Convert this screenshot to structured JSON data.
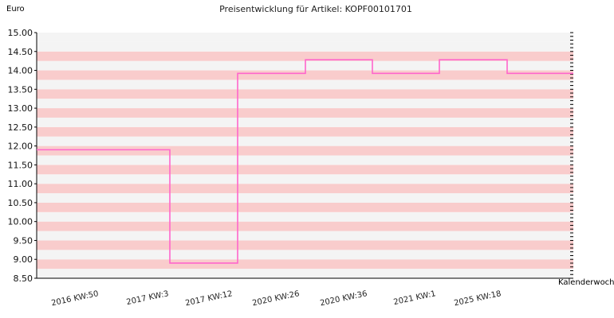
{
  "chart_data": {
    "type": "line",
    "title": "Preisentwicklung für Artikel: KOPF00101701",
    "ylabel": "Euro",
    "xlabel": "Kalenderwoche",
    "ylim": [
      8.5,
      15.0
    ],
    "yticks": [
      "15.00",
      "14.50",
      "14.00",
      "13.50",
      "13.00",
      "12.50",
      "12.00",
      "11.50",
      "11.00",
      "10.50",
      "10.00",
      "9.50",
      "9.00",
      "8.50"
    ],
    "categories": [
      "2016 KW:50",
      "2017 KW:3",
      "2017 KW:12",
      "2020 KW:26",
      "2020 KW:36",
      "2021 KW:1",
      "2025 KW:18"
    ],
    "series": [
      {
        "values": [
          11.9,
          8.9,
          13.92,
          14.28,
          13.92,
          14.28,
          13.92
        ]
      }
    ],
    "step": true,
    "grid": true,
    "colors": {
      "line": "#ff66cc",
      "band_light": "#f4f4f4",
      "band_pink": "#f9cccc",
      "axis": "#000000"
    }
  }
}
